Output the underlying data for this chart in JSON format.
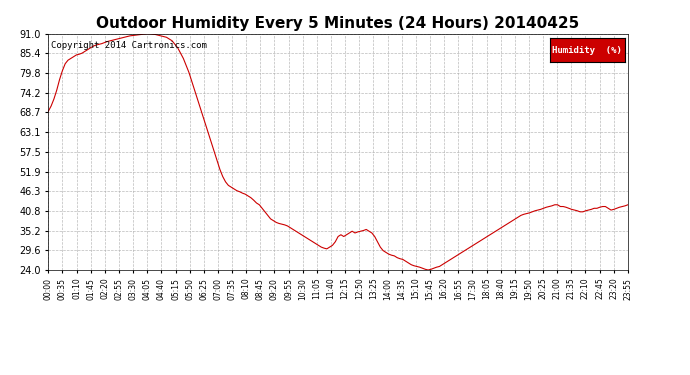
{
  "title": "Outdoor Humidity Every 5 Minutes (24 Hours) 20140425",
  "copyright_text": "Copyright 2014 Cartronics.com",
  "legend_label": "Humidity  (%)",
  "legend_bg": "#cc0000",
  "legend_text_color": "#ffffff",
  "line_color": "#cc0000",
  "bg_color": "#ffffff",
  "grid_color": "#aaaaaa",
  "yticks": [
    24.0,
    29.6,
    35.2,
    40.8,
    46.3,
    51.9,
    57.5,
    63.1,
    68.7,
    74.2,
    79.8,
    85.4,
    91.0
  ],
  "ymin": 24.0,
  "ymax": 91.0,
  "title_fontsize": 11,
  "copyright_fontsize": 6.5,
  "x_tick_labels": [
    "00:00",
    "00:35",
    "01:10",
    "01:45",
    "02:20",
    "02:55",
    "03:30",
    "04:05",
    "04:40",
    "05:15",
    "05:50",
    "06:25",
    "07:00",
    "07:35",
    "08:10",
    "08:45",
    "09:20",
    "09:55",
    "10:30",
    "11:05",
    "11:40",
    "12:15",
    "12:50",
    "13:25",
    "14:00",
    "14:35",
    "15:10",
    "15:45",
    "16:20",
    "16:55",
    "17:30",
    "18:05",
    "18:40",
    "19:15",
    "19:50",
    "20:25",
    "21:00",
    "21:35",
    "22:10",
    "22:45",
    "23:20",
    "23:55"
  ],
  "humidity_values": [
    69.0,
    70.5,
    72.5,
    75.0,
    78.0,
    80.5,
    82.5,
    83.5,
    84.0,
    84.5,
    85.0,
    85.2,
    85.5,
    86.0,
    86.5,
    87.0,
    87.5,
    87.8,
    88.0,
    88.2,
    88.5,
    88.8,
    89.0,
    89.2,
    89.4,
    89.6,
    89.8,
    90.0,
    90.2,
    90.4,
    90.5,
    90.6,
    90.7,
    90.8,
    90.9,
    91.0,
    91.0,
    90.9,
    90.8,
    90.6,
    90.4,
    90.2,
    90.0,
    89.5,
    89.0,
    88.0,
    87.0,
    85.5,
    84.0,
    82.0,
    80.0,
    77.5,
    75.0,
    72.5,
    70.0,
    67.5,
    65.0,
    62.5,
    60.0,
    57.5,
    55.0,
    52.5,
    50.5,
    49.0,
    48.0,
    47.5,
    47.0,
    46.5,
    46.2,
    45.8,
    45.5,
    45.0,
    44.5,
    43.8,
    43.0,
    42.5,
    41.5,
    40.5,
    39.5,
    38.5,
    38.0,
    37.5,
    37.2,
    37.0,
    36.8,
    36.5,
    36.0,
    35.5,
    35.0,
    34.5,
    34.0,
    33.5,
    33.0,
    32.5,
    32.0,
    31.5,
    31.0,
    30.5,
    30.2,
    30.0,
    30.5,
    31.0,
    32.0,
    33.5,
    34.0,
    33.5,
    34.0,
    34.5,
    35.0,
    34.5,
    34.8,
    35.0,
    35.2,
    35.5,
    35.0,
    34.5,
    33.5,
    32.0,
    30.5,
    29.5,
    29.0,
    28.5,
    28.2,
    28.0,
    27.5,
    27.2,
    27.0,
    26.5,
    26.0,
    25.5,
    25.2,
    25.0,
    24.8,
    24.5,
    24.2,
    24.0,
    24.2,
    24.5,
    24.8,
    25.0,
    25.5,
    26.0,
    26.5,
    27.0,
    27.5,
    28.0,
    28.5,
    29.0,
    29.5,
    30.0,
    30.5,
    31.0,
    31.5,
    32.0,
    32.5,
    33.0,
    33.5,
    34.0,
    34.5,
    35.0,
    35.5,
    36.0,
    36.5,
    37.0,
    37.5,
    38.0,
    38.5,
    39.0,
    39.5,
    39.8,
    40.0,
    40.2,
    40.5,
    40.8,
    41.0,
    41.2,
    41.5,
    41.8,
    42.0,
    42.2,
    42.5,
    42.5,
    42.0,
    42.0,
    41.8,
    41.5,
    41.2,
    41.0,
    40.8,
    40.5,
    40.5,
    40.8,
    41.0,
    41.2,
    41.5,
    41.5,
    41.8,
    42.0,
    42.0,
    41.5,
    41.0,
    41.2,
    41.5,
    41.8,
    42.0,
    42.2,
    42.5
  ]
}
